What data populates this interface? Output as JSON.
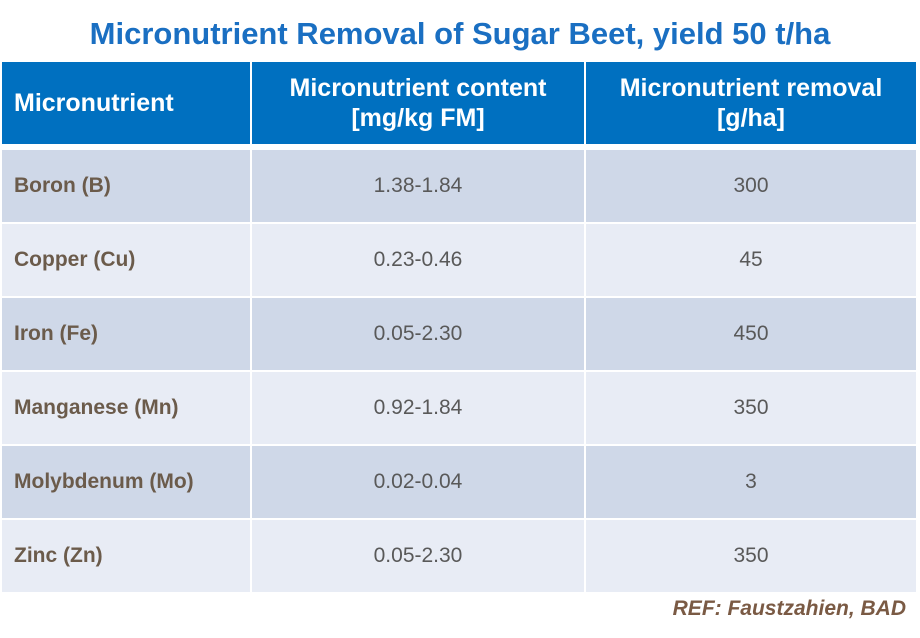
{
  "title": "Micronutrient Removal of Sugar Beet, yield 50 t/ha",
  "table": {
    "header": [
      "Micronutrient",
      "Micronutrient content\n[mg/kg FM]",
      "Micronutrient removal\n[g/ha]"
    ],
    "rows": [
      [
        "Boron (B)",
        "1.38-1.84",
        "300"
      ],
      [
        "Copper (Cu)",
        "0.23-0.46",
        "45"
      ],
      [
        "Iron (Fe)",
        "0.05-2.30",
        "450"
      ],
      [
        "Manganese (Mn)",
        "0.92-1.84",
        "350"
      ],
      [
        "Molybdenum (Mo)",
        "0.02-0.04",
        "3"
      ],
      [
        "Zinc (Zn)",
        "0.05-2.30",
        "350"
      ]
    ]
  },
  "footer": "REF: Faustzahien, BAD"
}
